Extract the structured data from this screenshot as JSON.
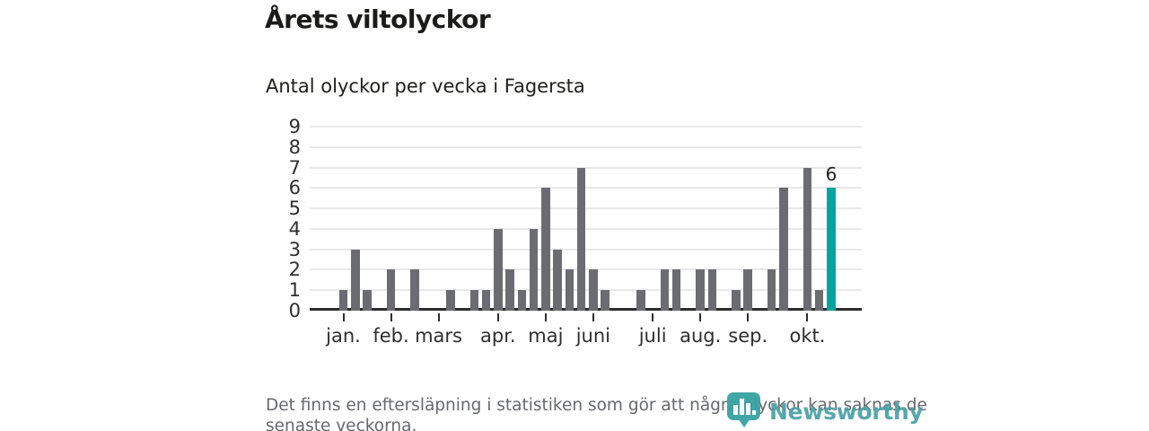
{
  "header": {
    "title": "Årets viltolyckor",
    "subtitle": "Antal olyckor per vecka i Fagersta"
  },
  "chart_data": {
    "type": "bar",
    "title": "Årets viltolyckor",
    "subtitle": "Antal olyckor per vecka i Fagersta",
    "x_unit": "vecka",
    "values": [
      1,
      3,
      1,
      0,
      2,
      0,
      2,
      0,
      0,
      1,
      0,
      1,
      1,
      4,
      2,
      1,
      4,
      6,
      3,
      2,
      7,
      2,
      1,
      0,
      0,
      1,
      0,
      2,
      2,
      0,
      2,
      2,
      0,
      1,
      2,
      0,
      2,
      6,
      0,
      7,
      1,
      6
    ],
    "highlight_index": 41,
    "highlight_value_label": "6",
    "months": [
      {
        "label": "jan.",
        "week": 0
      },
      {
        "label": "feb.",
        "week": 4
      },
      {
        "label": "mars",
        "week": 8
      },
      {
        "label": "apr.",
        "week": 13
      },
      {
        "label": "maj",
        "week": 17
      },
      {
        "label": "juni",
        "week": 21
      },
      {
        "label": "juli",
        "week": 26
      },
      {
        "label": "aug.",
        "week": 30
      },
      {
        "label": "sep.",
        "week": 34
      },
      {
        "label": "okt.",
        "week": 39
      }
    ],
    "ylim": [
      0,
      9
    ],
    "yticks": [
      0,
      1,
      2,
      3,
      4,
      5,
      6,
      7,
      8,
      9
    ],
    "grid": "horizontal",
    "legend": "none",
    "colors": {
      "bar": "#6b6b72",
      "highlight": "#00a49d",
      "baseline": "#2d2d2d",
      "gridline": "#e9e9e9"
    }
  },
  "footer": {
    "line1": "Det finns en eftersläpning i statistiken som gör att några olyckor kan saknas de",
    "line2": "senaste veckorna."
  },
  "logo": {
    "wordmark": "Newsworthy",
    "icon": "newsworthy-bar-chart-pin-icon",
    "color": "#4ba1a5"
  }
}
